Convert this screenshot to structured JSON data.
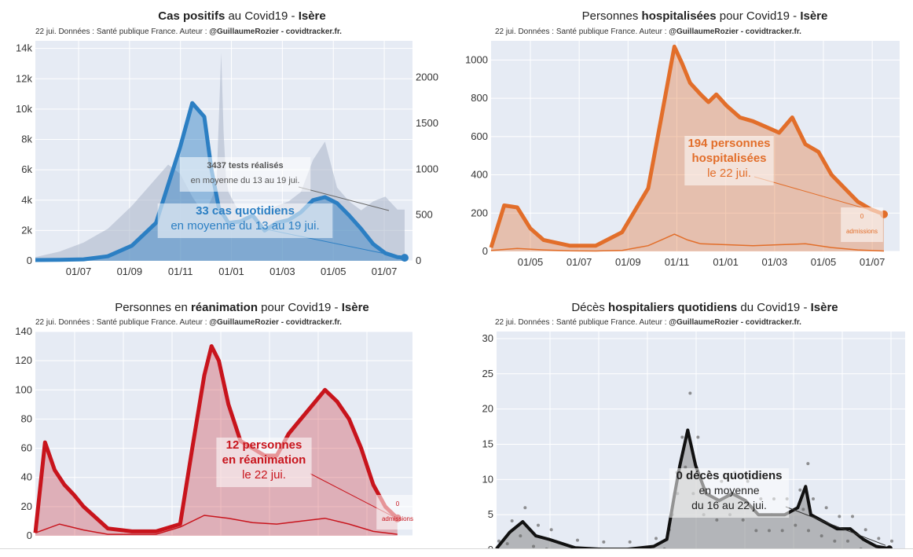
{
  "panels": [
    {
      "title_parts": [
        "Cas positifs",
        " au Covid19 - ",
        "Isère"
      ],
      "subtitle_parts": [
        "22 jui. Données : Santé publique France. Auteur : ",
        "@GuillaumeRozier - covidtracker.fr."
      ]
    },
    {
      "title_parts": [
        "Personnes ",
        "hospitalisées",
        " pour Covid19 - ",
        "Isère"
      ],
      "subtitle_parts": [
        "22 jui. Données : Santé publique France. Auteur : ",
        "@GuillaumeRozier - covidtracker.fr."
      ]
    },
    {
      "title_parts": [
        "Personnes en ",
        "réanimation",
        " pour Covid19 - ",
        "Isère"
      ],
      "subtitle_parts": [
        "22 jui. Données : Santé publique France. Auteur : ",
        "@GuillaumeRozier - covidtracker.fr."
      ]
    },
    {
      "title_parts": [
        "Décès ",
        "hospitaliers quotidiens",
        " du Covid19 - ",
        "Isère"
      ],
      "subtitle_parts": [
        "22 jui. Données : Santé publique France. Auteur : ",
        "@GuillaumeRozier - covidtracker.fr."
      ]
    }
  ],
  "chart_data": [
    {
      "type": "area",
      "y_ticks": [
        "0",
        "2k",
        "4k",
        "6k",
        "8k",
        "10k",
        "12k",
        "14k"
      ],
      "ylim": [
        0,
        14500
      ],
      "y2_ticks": [
        "0",
        "500",
        "1000",
        "1500",
        "2000"
      ],
      "y2lim": [
        0,
        2400
      ],
      "x_ticks": [
        "01/07",
        "01/09",
        "01/11",
        "01/01",
        "01/03",
        "01/05",
        "01/07"
      ],
      "annotation_main": [
        "33 cas quotidiens",
        "en moyenne du 13 au 19 jui."
      ],
      "annotation_tests": [
        "3437 tests réalisés",
        "en moyenne du 13 au 19 jui."
      ],
      "cases_x": [
        0,
        1,
        2,
        3,
        4,
        5,
        6,
        6.5,
        7,
        7.3,
        7.6,
        8,
        8.5,
        9,
        9.5,
        10,
        10.5,
        11,
        11.5,
        12,
        12.5,
        13,
        13.5,
        14,
        14.5,
        15,
        15.3
      ],
      "cases_y": [
        50,
        60,
        100,
        300,
        1000,
        2500,
        7500,
        10400,
        9500,
        6000,
        3500,
        2500,
        2600,
        3000,
        2000,
        2500,
        2700,
        3200,
        4000,
        4200,
        3800,
        3000,
        2100,
        1100,
        500,
        250,
        200
      ],
      "tests_x": [
        0,
        1,
        2,
        3,
        4,
        5,
        5.5,
        6,
        6.5,
        7,
        7.5,
        7.7,
        7.8,
        7.9,
        8,
        8.3,
        8.6,
        9,
        9.5,
        10,
        10.5,
        11,
        11.5,
        12,
        12.5,
        13,
        13.5,
        14,
        14.5,
        15,
        15.3
      ],
      "tests_y": [
        40,
        100,
        200,
        350,
        600,
        900,
        1050,
        950,
        700,
        500,
        800,
        2270,
        1400,
        900,
        750,
        600,
        500,
        480,
        520,
        600,
        650,
        750,
        1100,
        1300,
        800,
        650,
        550,
        650,
        700,
        560,
        560
      ]
    },
    {
      "type": "area",
      "y_ticks": [
        "0",
        "200",
        "400",
        "600",
        "800",
        "1000"
      ],
      "ylim": [
        0,
        1100
      ],
      "x_ticks": [
        "01/05",
        "01/07",
        "01/09",
        "01/11",
        "01/01",
        "01/03",
        "01/05",
        "01/07"
      ],
      "annotation_main": [
        "194 personnes",
        "hospitalisées",
        "le 22 jui."
      ],
      "annotation_small": [
        "0",
        "admissions"
      ],
      "hosp_x": [
        0,
        0.5,
        1,
        1.5,
        2,
        3,
        4,
        5,
        6,
        6.5,
        7,
        7.3,
        7.6,
        8,
        8.3,
        8.6,
        9,
        9.5,
        10,
        10.5,
        11,
        11.5,
        12,
        12.5,
        13,
        13.5,
        14,
        14.5,
        15
      ],
      "hosp_y": [
        20,
        240,
        230,
        120,
        60,
        30,
        30,
        100,
        330,
        700,
        1070,
        980,
        880,
        820,
        780,
        820,
        760,
        700,
        680,
        650,
        620,
        700,
        560,
        520,
        400,
        330,
        260,
        220,
        194
      ],
      "adm_x": [
        0,
        1,
        2,
        3,
        4,
        5,
        6,
        6.5,
        7,
        7.5,
        8,
        9,
        10,
        11,
        12,
        13,
        14,
        15
      ],
      "adm_y": [
        5,
        15,
        8,
        3,
        2,
        5,
        30,
        60,
        90,
        60,
        40,
        35,
        30,
        35,
        40,
        20,
        8,
        2
      ]
    },
    {
      "type": "area",
      "y_ticks": [
        "0",
        "20",
        "40",
        "60",
        "80",
        "100",
        "120",
        "140"
      ],
      "ylim": [
        0,
        140
      ],
      "x_ticks": [],
      "annotation_main": [
        "12 personnes",
        "en réanimation",
        "le 22 jui."
      ],
      "annotation_small": [
        "0",
        "admissions"
      ],
      "rea_x": [
        0,
        0.4,
        0.8,
        1.2,
        1.6,
        2,
        3,
        4,
        5,
        6,
        6.5,
        7,
        7.3,
        7.6,
        8,
        8.5,
        9,
        9.5,
        10,
        10.5,
        11,
        11.5,
        12,
        12.5,
        13,
        13.5,
        14,
        14.5,
        15
      ],
      "rea_y": [
        2,
        64,
        45,
        35,
        28,
        20,
        5,
        3,
        3,
        8,
        60,
        110,
        130,
        120,
        90,
        65,
        60,
        55,
        55,
        70,
        80,
        90,
        100,
        92,
        80,
        60,
        35,
        20,
        12
      ],
      "adm_x": [
        0,
        1,
        2,
        3,
        4,
        5,
        6,
        7,
        8,
        9,
        10,
        11,
        12,
        13,
        14,
        15
      ],
      "adm_y": [
        2,
        8,
        4,
        1,
        1,
        1,
        6,
        14,
        12,
        9,
        8,
        10,
        12,
        8,
        3,
        1
      ]
    },
    {
      "type": "area",
      "y_ticks": [
        "0",
        "5",
        "10",
        "15",
        "20",
        "25",
        "30"
      ],
      "ylim": [
        0,
        31
      ],
      "x_ticks": [],
      "annotation_main": [
        "0 décès quotidiens",
        "en moyenne",
        "du 16 au 22 jui."
      ],
      "deaths_x": [
        0,
        0.5,
        1,
        1.5,
        2,
        3,
        4,
        5,
        6,
        6.5,
        6.8,
        7,
        7.3,
        7.6,
        8,
        8.5,
        9,
        9.5,
        10,
        10.5,
        11,
        11.5,
        11.8,
        12,
        12.5,
        13,
        13.5,
        14,
        14.5,
        15
      ],
      "deaths_y": [
        0.2,
        2.5,
        4,
        2,
        1.5,
        0.3,
        0.1,
        0.1,
        0.5,
        1.5,
        8,
        12,
        17,
        12,
        8,
        7,
        8,
        7,
        5,
        5,
        5,
        6,
        9,
        5,
        4,
        3,
        3,
        1.5,
        0.5,
        0.2
      ]
    }
  ],
  "colors": {
    "cases": "#2c7fc3",
    "tests": "#aab4c8",
    "hosp": "#e26e2a",
    "rea": "#c8141c",
    "deaths": "#111111",
    "plot_bg": "#e6ebf4"
  }
}
